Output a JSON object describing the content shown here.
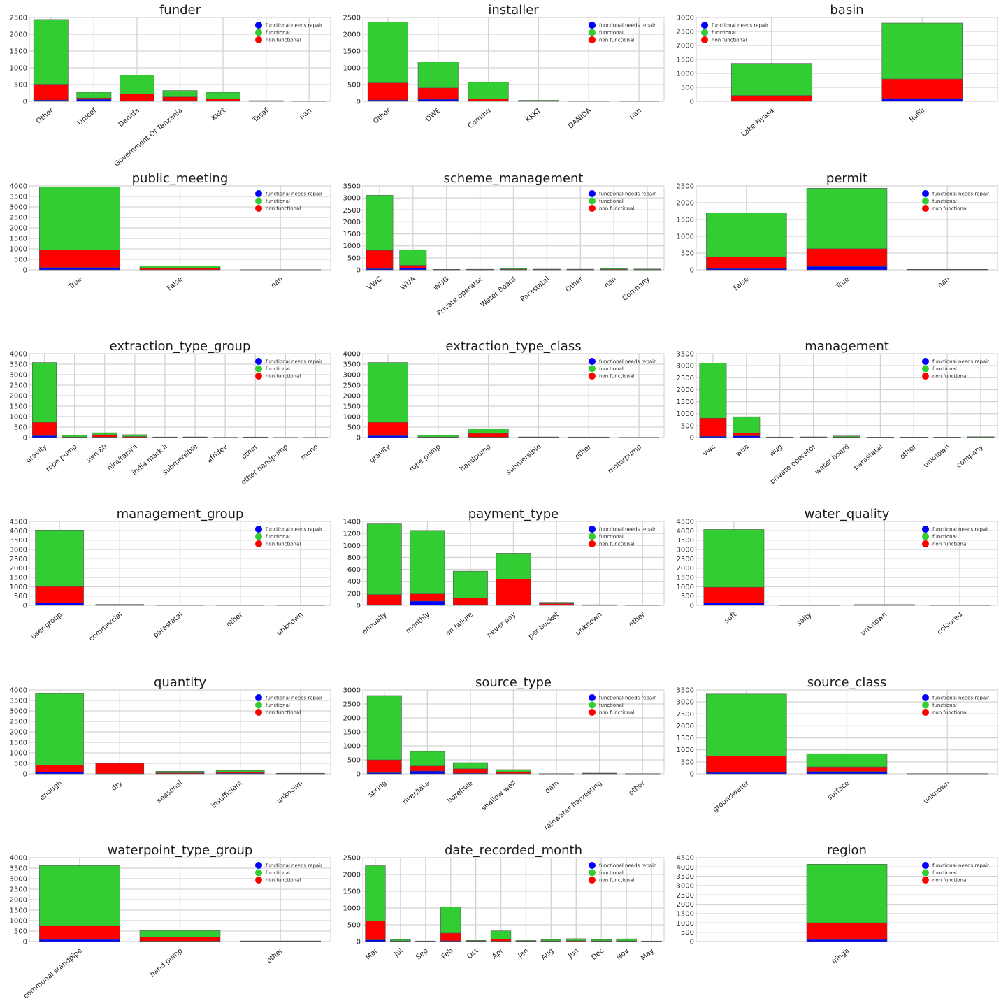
{
  "colors": {
    "functional needs repair": "#0000ff",
    "functional": "#32cd32",
    "non functional": "#ff0000"
  },
  "legend_labels": [
    "functional needs repair",
    "functional",
    "non functional"
  ],
  "chart_data": [
    {
      "type": "bar",
      "stacked": true,
      "title": "funder",
      "ylim": [
        0,
        2500
      ],
      "yticks": [
        0,
        500,
        1000,
        1500,
        2000,
        2500
      ],
      "legend": "top-right",
      "categories": [
        "Other",
        "Unicef",
        "Danida",
        "Government Of Tanzania",
        "Kkkt",
        "Tasaf",
        "nan"
      ],
      "series": [
        {
          "name": "functional needs repair",
          "values": [
            40,
            60,
            10,
            20,
            15,
            2,
            0
          ]
        },
        {
          "name": "non functional",
          "values": [
            470,
            40,
            210,
            110,
            55,
            3,
            2
          ]
        },
        {
          "name": "functional",
          "values": [
            1930,
            170,
            560,
            190,
            200,
            15,
            3
          ]
        }
      ]
    },
    {
      "type": "bar",
      "stacked": true,
      "title": "installer",
      "ylim": [
        0,
        2500
      ],
      "yticks": [
        0,
        500,
        1000,
        1500,
        2000,
        2500
      ],
      "legend": "top-right",
      "categories": [
        "Other",
        "DWE",
        "Commu",
        "KKKT",
        "DANIDA",
        "nan"
      ],
      "series": [
        {
          "name": "functional needs repair",
          "values": [
            40,
            60,
            10,
            2,
            1,
            0
          ]
        },
        {
          "name": "non functional",
          "values": [
            510,
            340,
            60,
            10,
            3,
            2
          ]
        },
        {
          "name": "functional",
          "values": [
            1810,
            780,
            500,
            20,
            6,
            3
          ]
        }
      ]
    },
    {
      "type": "bar",
      "stacked": true,
      "title": "basin",
      "ylim": [
        0,
        3000
      ],
      "yticks": [
        0,
        500,
        1000,
        1500,
        2000,
        2500,
        3000
      ],
      "legend": "top-left",
      "categories": [
        "Lake Nyasa",
        "Rufiji"
      ],
      "series": [
        {
          "name": "functional needs repair",
          "values": [
            10,
            100
          ]
        },
        {
          "name": "non functional",
          "values": [
            200,
            700
          ]
        },
        {
          "name": "functional",
          "values": [
            1150,
            2000
          ]
        }
      ]
    },
    {
      "type": "bar",
      "stacked": true,
      "title": "public_meeting",
      "ylim": [
        0,
        4000
      ],
      "yticks": [
        0,
        500,
        1000,
        1500,
        2000,
        2500,
        3000,
        3500,
        4000
      ],
      "legend": "top-right",
      "categories": [
        "True",
        "False",
        "nan"
      ],
      "series": [
        {
          "name": "functional needs repair",
          "values": [
            110,
            5,
            0
          ]
        },
        {
          "name": "non functional",
          "values": [
            840,
            70,
            2
          ]
        },
        {
          "name": "functional",
          "values": [
            3000,
            100,
            3
          ]
        }
      ]
    },
    {
      "type": "bar",
      "stacked": true,
      "title": "scheme_management",
      "ylim": [
        0,
        3500
      ],
      "yticks": [
        0,
        500,
        1000,
        1500,
        2000,
        2500,
        3000,
        3500
      ],
      "legend": "top-right",
      "categories": [
        "VWC",
        "WUA",
        "WUG",
        "Private operator",
        "Water Board",
        "Parastatal",
        "Other",
        "nan",
        "Company"
      ],
      "series": [
        {
          "name": "functional needs repair",
          "values": [
            50,
            70,
            2,
            1,
            5,
            1,
            1,
            2,
            1
          ]
        },
        {
          "name": "non functional",
          "values": [
            760,
            120,
            6,
            8,
            25,
            8,
            15,
            25,
            8
          ]
        },
        {
          "name": "functional",
          "values": [
            2300,
            640,
            12,
            15,
            35,
            20,
            10,
            35,
            25
          ]
        }
      ]
    },
    {
      "type": "bar",
      "stacked": true,
      "title": "permit",
      "ylim": [
        0,
        2500
      ],
      "yticks": [
        0,
        500,
        1000,
        1500,
        2000,
        2500
      ],
      "legend": "top-right",
      "categories": [
        "False",
        "True",
        "nan"
      ],
      "series": [
        {
          "name": "functional needs repair",
          "values": [
            40,
            100,
            0
          ]
        },
        {
          "name": "non functional",
          "values": [
            350,
            530,
            5
          ]
        },
        {
          "name": "functional",
          "values": [
            1310,
            1800,
            10
          ]
        }
      ]
    },
    {
      "type": "bar",
      "stacked": true,
      "title": "extraction_type_group",
      "ylim": [
        0,
        4000
      ],
      "yticks": [
        0,
        500,
        1000,
        1500,
        2000,
        2500,
        3000,
        3500,
        4000
      ],
      "legend": "top-right",
      "categories": [
        "gravity",
        "rope pump",
        "swn 80",
        "nira/tanira",
        "india mark ii",
        "submersible",
        "afridev",
        "other",
        "other handpump",
        "mono"
      ],
      "series": [
        {
          "name": "functional needs repair",
          "values": [
            90,
            5,
            20,
            5,
            2,
            1,
            1,
            1,
            1,
            1
          ]
        },
        {
          "name": "non functional",
          "values": [
            640,
            20,
            110,
            40,
            10,
            20,
            5,
            20,
            3,
            3
          ]
        },
        {
          "name": "functional",
          "values": [
            2850,
            80,
            100,
            90,
            15,
            10,
            6,
            4,
            3,
            2
          ]
        }
      ]
    },
    {
      "type": "bar",
      "stacked": true,
      "title": "extraction_type_class",
      "ylim": [
        0,
        4000
      ],
      "yticks": [
        0,
        500,
        1000,
        1500,
        2000,
        2500,
        3000,
        3500,
        4000
      ],
      "legend": "top-right",
      "categories": [
        "gravity",
        "rope pump",
        "handpump",
        "submersible",
        "other",
        "motorpump"
      ],
      "series": [
        {
          "name": "functional needs repair",
          "values": [
            90,
            5,
            20,
            1,
            1,
            1
          ]
        },
        {
          "name": "non functional",
          "values": [
            640,
            20,
            180,
            20,
            20,
            3
          ]
        },
        {
          "name": "functional",
          "values": [
            2850,
            80,
            220,
            10,
            4,
            5
          ]
        }
      ]
    },
    {
      "type": "bar",
      "stacked": true,
      "title": "management",
      "ylim": [
        0,
        3500
      ],
      "yticks": [
        0,
        500,
        1000,
        1500,
        2000,
        2500,
        3000,
        3500
      ],
      "legend": "top-right",
      "categories": [
        "vwc",
        "wua",
        "wug",
        "private operator",
        "water board",
        "parastatal",
        "other",
        "unknown",
        "company"
      ],
      "series": [
        {
          "name": "functional needs repair",
          "values": [
            50,
            70,
            2,
            1,
            5,
            1,
            1,
            1,
            1
          ]
        },
        {
          "name": "non functional",
          "values": [
            760,
            120,
            5,
            8,
            20,
            8,
            10,
            8,
            8
          ]
        },
        {
          "name": "functional",
          "values": [
            2300,
            680,
            15,
            20,
            40,
            10,
            10,
            10,
            25
          ]
        }
      ]
    },
    {
      "type": "bar",
      "stacked": true,
      "title": "management_group",
      "ylim": [
        0,
        4500
      ],
      "yticks": [
        0,
        500,
        1000,
        1500,
        2000,
        2500,
        3000,
        3500,
        4000,
        4500
      ],
      "legend": "top-right",
      "categories": [
        "user-group",
        "commercial",
        "parastatal",
        "other",
        "unknown"
      ],
      "series": [
        {
          "name": "functional needs repair",
          "values": [
            130,
            2,
            1,
            1,
            1
          ]
        },
        {
          "name": "non functional",
          "values": [
            880,
            15,
            8,
            10,
            8
          ]
        },
        {
          "name": "functional",
          "values": [
            3030,
            35,
            10,
            10,
            10
          ]
        }
      ]
    },
    {
      "type": "bar",
      "stacked": true,
      "title": "payment_type",
      "ylim": [
        0,
        1400
      ],
      "yticks": [
        0,
        200,
        400,
        600,
        800,
        1000,
        1200,
        1400
      ],
      "legend": "top-right",
      "categories": [
        "annually",
        "monthly",
        "on failure",
        "never pay",
        "per bucket",
        "unknown",
        "other"
      ],
      "series": [
        {
          "name": "functional needs repair",
          "values": [
            10,
            70,
            10,
            10,
            5,
            1,
            1
          ]
        },
        {
          "name": "non functional",
          "values": [
            170,
            120,
            110,
            430,
            25,
            5,
            3
          ]
        },
        {
          "name": "functional",
          "values": [
            1190,
            1060,
            450,
            430,
            20,
            4,
            3
          ]
        }
      ]
    },
    {
      "type": "bar",
      "stacked": true,
      "title": "water_quality",
      "ylim": [
        0,
        4500
      ],
      "yticks": [
        0,
        500,
        1000,
        1500,
        2000,
        2500,
        3000,
        3500,
        4000,
        4500
      ],
      "legend": "top-right",
      "categories": [
        "soft",
        "salty",
        "unknown",
        "coloured"
      ],
      "series": [
        {
          "name": "functional needs repair",
          "values": [
            130,
            1,
            2,
            1
          ]
        },
        {
          "name": "non functional",
          "values": [
            840,
            5,
            30,
            5
          ]
        },
        {
          "name": "functional",
          "values": [
            3100,
            10,
            10,
            5
          ]
        }
      ]
    },
    {
      "type": "bar",
      "stacked": true,
      "title": "quantity",
      "ylim": [
        0,
        4000
      ],
      "yticks": [
        0,
        500,
        1000,
        1500,
        2000,
        2500,
        3000,
        3500,
        4000
      ],
      "legend": "top-right",
      "categories": [
        "enough",
        "dry",
        "seasonal",
        "insufficient",
        "unknown"
      ],
      "series": [
        {
          "name": "functional needs repair",
          "values": [
            90,
            5,
            10,
            30,
            1
          ]
        },
        {
          "name": "non functional",
          "values": [
            320,
            500,
            40,
            50,
            20
          ]
        },
        {
          "name": "functional",
          "values": [
            3420,
            5,
            70,
            80,
            5
          ]
        }
      ]
    },
    {
      "type": "bar",
      "stacked": true,
      "title": "source_type",
      "ylim": [
        0,
        3000
      ],
      "yticks": [
        0,
        500,
        1000,
        1500,
        2000,
        2500,
        3000
      ],
      "legend": "top-right",
      "categories": [
        "spring",
        "river/lake",
        "borehole",
        "shallow well",
        "dam",
        "rainwater harvesting",
        "other"
      ],
      "series": [
        {
          "name": "functional needs repair",
          "values": [
            40,
            100,
            20,
            10,
            1,
            2,
            1
          ]
        },
        {
          "name": "non functional",
          "values": [
            460,
            180,
            160,
            60,
            3,
            8,
            3
          ]
        },
        {
          "name": "functional",
          "values": [
            2300,
            520,
            220,
            80,
            2,
            15,
            2
          ]
        }
      ]
    },
    {
      "type": "bar",
      "stacked": true,
      "title": "source_class",
      "ylim": [
        0,
        3500
      ],
      "yticks": [
        0,
        500,
        1000,
        1500,
        2000,
        2500,
        3000,
        3500
      ],
      "legend": "top-right",
      "categories": [
        "groundwater",
        "surface",
        "unknown"
      ],
      "series": [
        {
          "name": "functional needs repair",
          "values": [
            60,
            100,
            0
          ]
        },
        {
          "name": "non functional",
          "values": [
            690,
            190,
            3
          ]
        },
        {
          "name": "functional",
          "values": [
            2580,
            550,
            5
          ]
        }
      ]
    },
    {
      "type": "bar",
      "stacked": true,
      "title": "waterpoint_type_group",
      "ylim": [
        0,
        4000
      ],
      "yticks": [
        0,
        500,
        1000,
        1500,
        2000,
        2500,
        3000,
        3500,
        4000
      ],
      "legend": "top-right",
      "categories": [
        "communal standpipe",
        "hand pump",
        "other"
      ],
      "series": [
        {
          "name": "functional needs repair",
          "values": [
            100,
            20,
            2
          ]
        },
        {
          "name": "non functional",
          "values": [
            660,
            200,
            20
          ]
        },
        {
          "name": "functional",
          "values": [
            2860,
            300,
            8
          ]
        }
      ]
    },
    {
      "type": "bar",
      "stacked": true,
      "title": "date_recorded_month",
      "ylim": [
        0,
        2500
      ],
      "yticks": [
        0,
        500,
        1000,
        1500,
        2000,
        2500
      ],
      "legend": "top-right",
      "categories": [
        "Mar",
        "Jul",
        "Sep",
        "Feb",
        "Oct",
        "Apr",
        "Jan",
        "Aug",
        "Jun",
        "Dec",
        "Nov",
        "May"
      ],
      "series": [
        {
          "name": "functional needs repair",
          "values": [
            50,
            5,
            2,
            20,
            5,
            10,
            3,
            5,
            5,
            5,
            5,
            1
          ]
        },
        {
          "name": "non functional",
          "values": [
            560,
            15,
            5,
            230,
            10,
            60,
            10,
            15,
            20,
            15,
            15,
            5
          ]
        },
        {
          "name": "functional",
          "values": [
            1650,
            40,
            10,
            780,
            20,
            250,
            20,
            40,
            60,
            40,
            60,
            10
          ]
        }
      ]
    },
    {
      "type": "bar",
      "stacked": true,
      "title": "region",
      "ylim": [
        0,
        4500
      ],
      "yticks": [
        0,
        500,
        1000,
        1500,
        2000,
        2500,
        3000,
        3500,
        4000,
        4500
      ],
      "legend": "top-right",
      "categories": [
        "Iringa"
      ],
      "series": [
        {
          "name": "functional needs repair",
          "values": [
            110
          ]
        },
        {
          "name": "non functional",
          "values": [
            900
          ]
        },
        {
          "name": "functional",
          "values": [
            3140
          ]
        }
      ]
    }
  ]
}
